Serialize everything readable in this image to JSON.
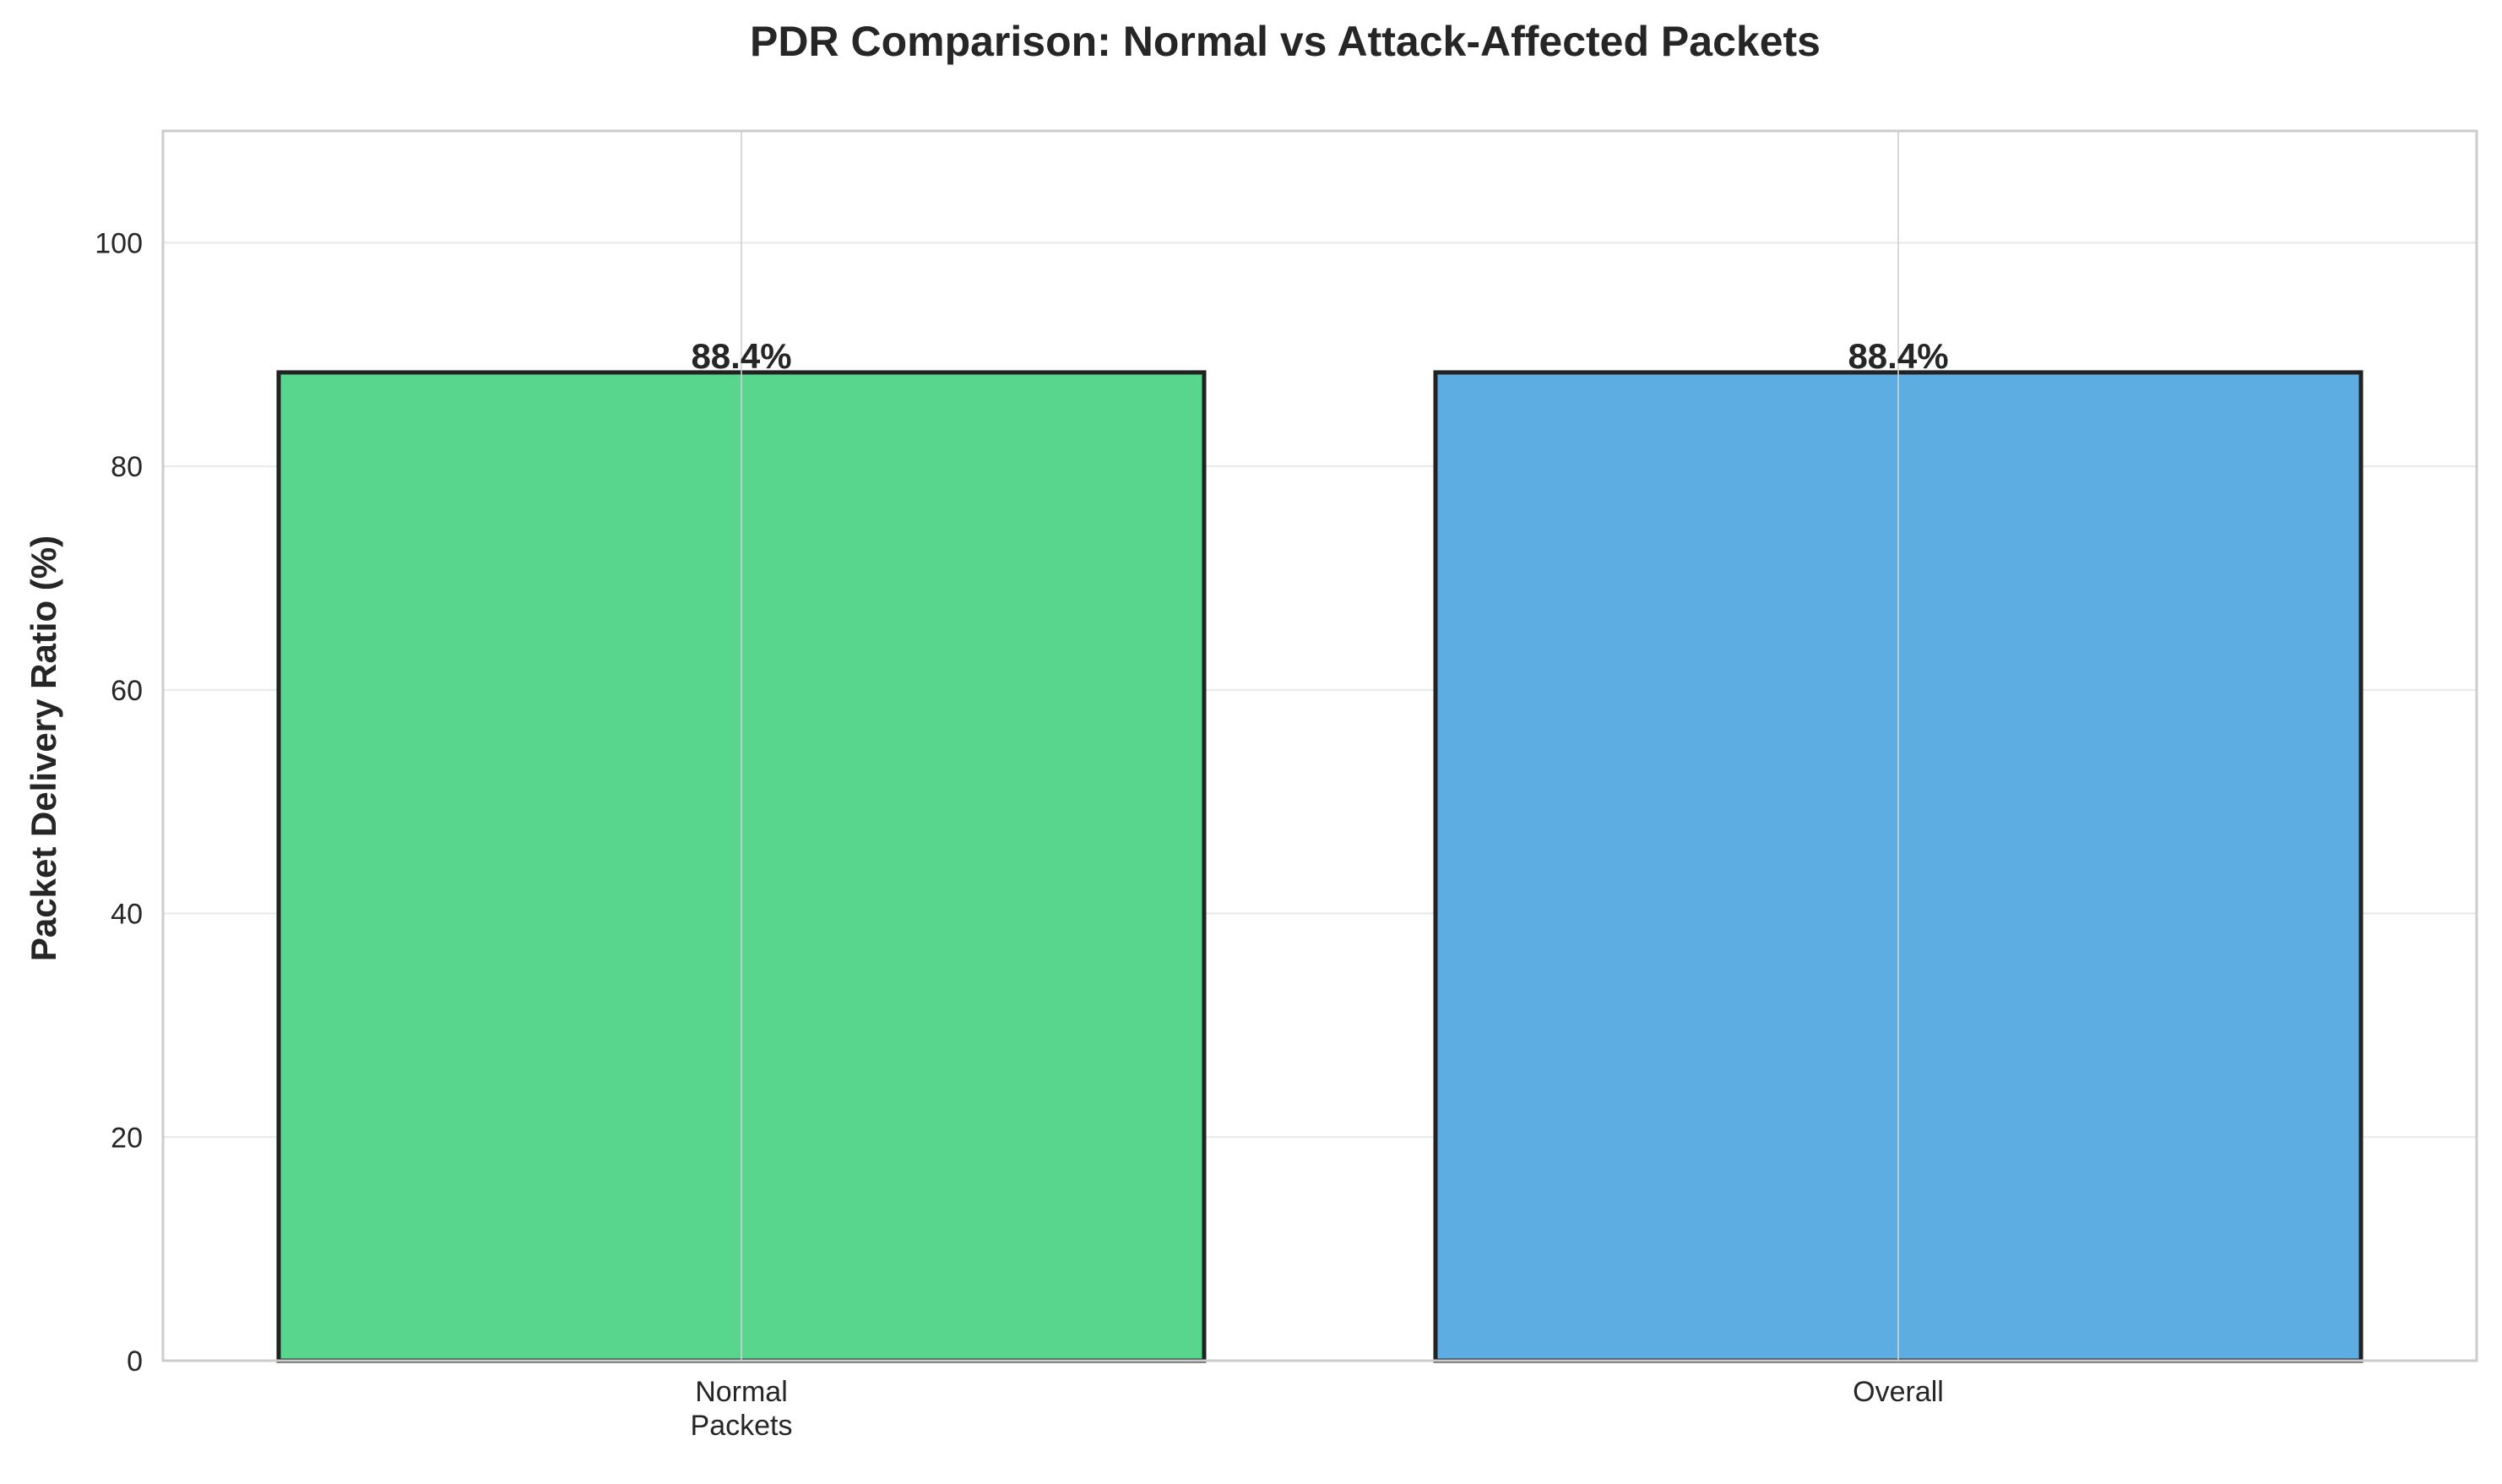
{
  "chart_data": {
    "type": "bar",
    "title": "PDR Comparison: Normal vs Attack-Affected Packets",
    "xlabel": "",
    "ylabel": "Packet Delivery Ratio (%)",
    "categories": [
      [
        "Normal",
        "Packets"
      ],
      [
        "Overall"
      ]
    ],
    "values": [
      88.4,
      88.4
    ],
    "data_labels": [
      "88.4%",
      "88.4%"
    ],
    "colors": [
      "#58d68d",
      "#5dade2"
    ],
    "edge_color": "#222222",
    "ylim": [
      0,
      110
    ],
    "yticks": [
      0,
      20,
      40,
      60,
      80,
      100
    ],
    "grid": true,
    "legend": "none"
  }
}
